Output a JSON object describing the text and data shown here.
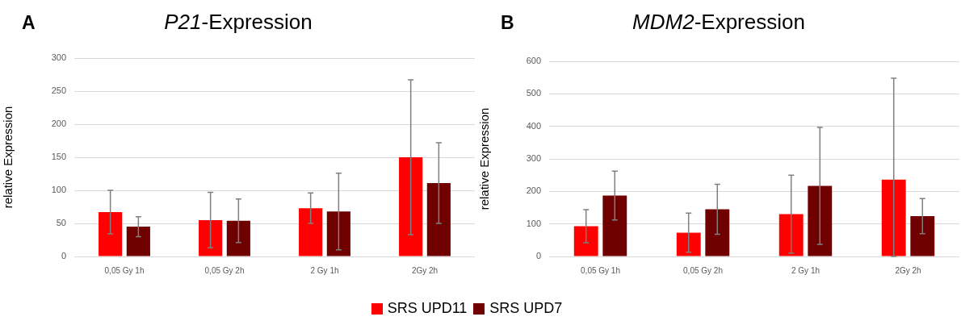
{
  "chart_data": [
    {
      "type": "bar",
      "title": "P21-Expression",
      "ylabel": "relative Expression",
      "annotations": [
        "A"
      ],
      "categories": [
        "0,05 Gy 1h",
        "0,05 Gy 2h",
        "2 Gy 1h",
        "2Gy 2h"
      ],
      "series": [
        {
          "name": "SRS UPD11",
          "color": "#ff0000",
          "values": [
            67,
            55,
            73,
            150
          ],
          "errors": [
            33,
            42,
            23,
            117
          ]
        },
        {
          "name": "SRS UPD7",
          "color": "#700000",
          "values": [
            45,
            54,
            68,
            111
          ],
          "errors": [
            15,
            33,
            58,
            61
          ]
        }
      ],
      "ylim": [
        0,
        300
      ],
      "yticks": [
        0,
        50,
        100,
        150,
        200,
        250,
        300
      ],
      "grid": "y",
      "legend": "bottom"
    },
    {
      "type": "bar",
      "title": "MDM2-Expression",
      "ylabel": "relative Expression",
      "annotations": [
        "B"
      ],
      "categories": [
        "0,05 Gy 1h",
        "0,05 Gy 2h",
        "2 Gy 1h",
        "2Gy 2h"
      ],
      "series": [
        {
          "color": "#ff0000",
          "values": [
            93,
            73,
            130,
            236
          ],
          "errors": [
            51,
            60,
            120,
            [
              0,
              548
            ]
          ]
        },
        {
          "color": "#700000",
          "values": [
            187,
            145,
            217,
            124
          ],
          "errors": [
            75,
            77,
            180,
            54
          ]
        }
      ],
      "ylim": [
        0,
        600
      ],
      "yticks": [
        0,
        100,
        200,
        300,
        400,
        500,
        600
      ],
      "grid": "y"
    }
  ]
}
